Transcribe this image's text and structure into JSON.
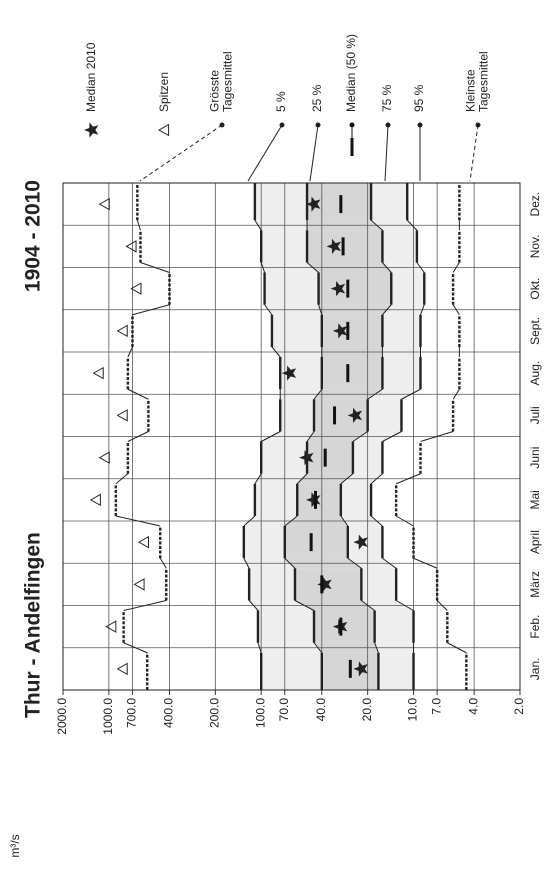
{
  "chart_data": {
    "type": "percentile-bands",
    "title": "Thur - Andelfingen",
    "subtitle": "1904 - 2010",
    "y_label": "m³/s",
    "log_y": true,
    "ylim": [
      2,
      2000
    ],
    "yticks": [
      {
        "value": 2000,
        "label": "2000.0"
      },
      {
        "value": 1000,
        "label": "1000.0"
      },
      {
        "value": 700,
        "label": "700.0"
      },
      {
        "value": 400,
        "label": "400.0"
      },
      {
        "value": 200,
        "label": "200.0"
      },
      {
        "value": 100,
        "label": "100.0"
      },
      {
        "value": 70,
        "label": "70.0"
      },
      {
        "value": 40,
        "label": "40.0"
      },
      {
        "value": 20,
        "label": "20.0"
      },
      {
        "value": 10,
        "label": "10.0"
      },
      {
        "value": 7,
        "label": "7.0"
      },
      {
        "value": 4,
        "label": "4.0"
      },
      {
        "value": 2,
        "label": "2.0"
      }
    ],
    "grid": true,
    "categories": [
      "Jan.",
      "Feb.",
      "März",
      "April",
      "Mai",
      "Juni",
      "Juli",
      "Aug.",
      "Sept.",
      "Okt.",
      "Nov.",
      "Dez."
    ],
    "band_colors": [
      "#eeeeee",
      "#d6d6d6"
    ],
    "series": [
      {
        "name": [
          "Median 2010"
        ],
        "style": "star",
        "color": "#222222",
        "values": [
          22,
          30,
          38,
          22,
          45,
          50,
          24,
          65,
          30,
          31,
          33,
          45
        ]
      },
      {
        "name": [
          "Spitzen"
        ],
        "style": "triangle",
        "color": "#222222",
        "values": [
          800,
          950,
          620,
          580,
          1200,
          1050,
          800,
          1150,
          800,
          650,
          700,
          1050
        ]
      },
      {
        "name": [
          "Grösste",
          "Tagesmittel"
        ],
        "style": "dashed",
        "color": "#222222",
        "values": [
          560,
          800,
          420,
          460,
          900,
          750,
          550,
          750,
          700,
          400,
          620,
          650
        ]
      },
      {
        "name": [
          "5 %"
        ],
        "style": "line",
        "color": "#222222",
        "values": [
          100,
          105,
          120,
          130,
          110,
          100,
          75,
          75,
          85,
          95,
          100,
          110
        ]
      },
      {
        "name": [
          "25 %"
        ],
        "style": "line",
        "color": "#222222",
        "values": [
          40,
          45,
          60,
          70,
          58,
          50,
          45,
          40,
          40,
          42,
          50,
          50
        ]
      },
      {
        "name": [
          "Median (50 %)"
        ],
        "style": "bar",
        "color": "#111111",
        "values": [
          26,
          30,
          40,
          47,
          44,
          38,
          33,
          27,
          27,
          27,
          29,
          30
        ]
      },
      {
        "name": [
          "75 %"
        ],
        "style": "line",
        "color": "#222222",
        "values": [
          17,
          18,
          22,
          27,
          30,
          25,
          20,
          16,
          16,
          14,
          16,
          19
        ]
      },
      {
        "name": [
          "95 %"
        ],
        "style": "line",
        "color": "#222222",
        "values": [
          10,
          10,
          13,
          16,
          19,
          16,
          12,
          9,
          9,
          8.5,
          9.5,
          11
        ]
      },
      {
        "name": [
          "Kleinste",
          "Tagesmittel"
        ],
        "style": "dashed",
        "color": "#222222",
        "values": [
          4.5,
          6,
          7,
          10,
          13,
          9,
          5.5,
          5,
          5,
          5.5,
          5,
          5
        ]
      }
    ]
  }
}
